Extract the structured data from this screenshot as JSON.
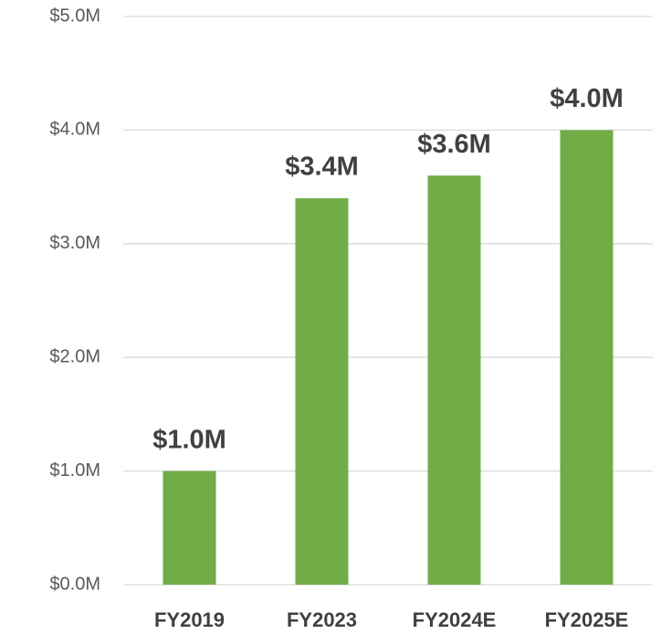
{
  "chart_data": {
    "type": "bar",
    "categories": [
      "FY2019",
      "FY2023",
      "FY2024E",
      "FY2025E"
    ],
    "values": [
      1.0,
      3.4,
      3.6,
      4.0
    ],
    "value_labels": [
      "$1.0M",
      "$3.4M",
      "$3.6M",
      "$4.0M"
    ],
    "color": "#70ad47",
    "ylim": [
      0,
      5
    ],
    "yticks": [
      {
        "value": 0,
        "label": "$0.0M"
      },
      {
        "value": 1,
        "label": "$1.0M"
      },
      {
        "value": 2,
        "label": "$2.0M"
      },
      {
        "value": 3,
        "label": "$3.0M"
      },
      {
        "value": 4,
        "label": "$4.0M"
      },
      {
        "value": 5,
        "label": "$5.0M"
      }
    ],
    "grid": true
  }
}
